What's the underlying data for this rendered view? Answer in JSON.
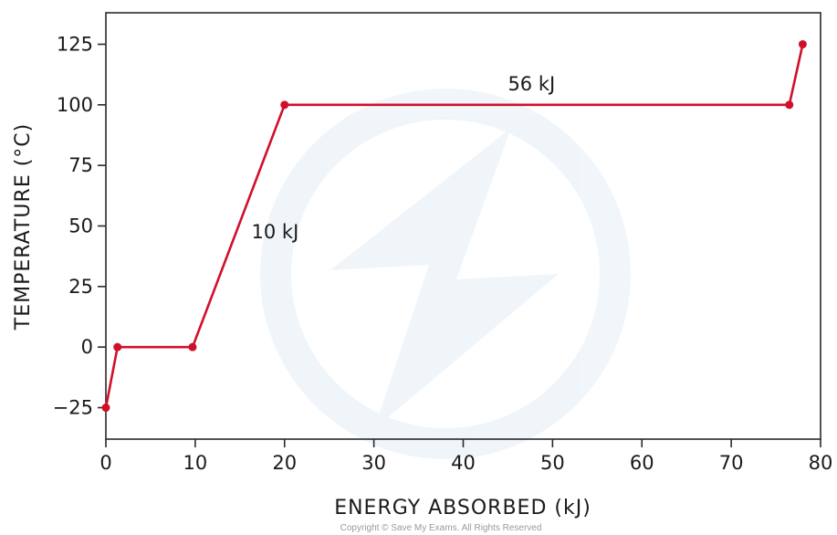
{
  "chart_data": {
    "type": "line",
    "title": "",
    "xlabel": "ENERGY  ABSORBED  (kJ)",
    "ylabel": "TEMPERATURE  (°C)",
    "xlim": [
      0,
      80
    ],
    "ylim": [
      -38,
      138
    ],
    "x_ticks": [
      0,
      10,
      20,
      30,
      40,
      50,
      60,
      70,
      80
    ],
    "y_ticks": [
      -25,
      0,
      25,
      50,
      75,
      100,
      125
    ],
    "x_tick_labels": [
      "0",
      "10",
      "20",
      "30",
      "40",
      "50",
      "60",
      "70",
      "80"
    ],
    "y_tick_labels": [
      "−25",
      "0",
      "25",
      "50",
      "75",
      "100",
      "125"
    ],
    "grid": false,
    "series": [
      {
        "color": "#d0102a",
        "x": [
          0,
          1.3,
          9.7,
          20,
          76.5,
          78
        ],
        "y": [
          -25,
          0,
          0,
          100,
          100,
          125
        ]
      }
    ],
    "annotations": [
      {
        "text": "10 kJ",
        "x": 16.3,
        "y": 45
      },
      {
        "text": "56 kJ",
        "x": 45,
        "y": 106
      }
    ]
  },
  "footer": {
    "copyright": "Copyright © Save My Exams. All Rights Reserved"
  }
}
